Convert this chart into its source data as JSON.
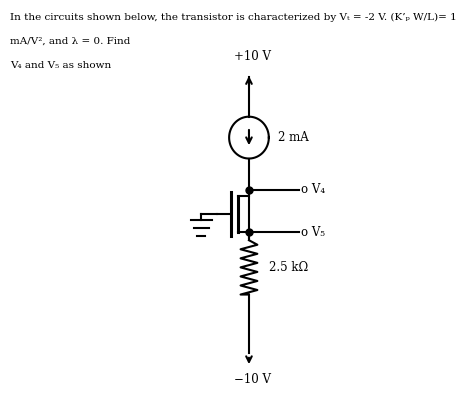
{
  "title_text": "In the circuits shown below, the transistor is characterized by Vₜ = -2 V. (K’ₚ W/L)= 1",
  "line2_text": "mA/V², and λ = 0. Find",
  "line3_text": "V₄ and V₅ as shown",
  "vplus_label": "+10 V",
  "vminus_label": "−10 V",
  "current_label": "2 mA",
  "resistor_label": "2.5 kΩ",
  "v4_label": "o V₄",
  "v5_label": "o V₅",
  "bg_color": "#ffffff",
  "line_color": "#000000",
  "text_color": "#000000"
}
